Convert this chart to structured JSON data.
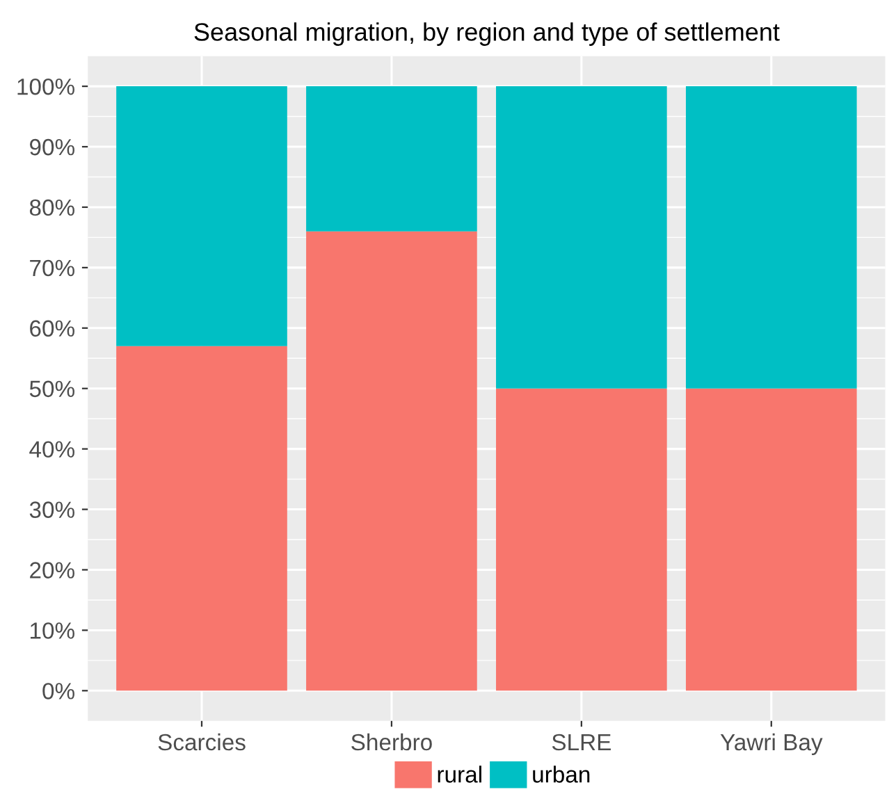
{
  "chart_data": {
    "type": "bar",
    "title": "Seasonal migration, by region and type of settlement",
    "categories": [
      "Scarcies",
      "Sherbro",
      "SLRE",
      "Yawri Bay"
    ],
    "stacked": true,
    "series": [
      {
        "name": "rural",
        "color": "#f8766d",
        "values": [
          57,
          76,
          50,
          50
        ]
      },
      {
        "name": "urban",
        "color": "#00bfc4",
        "values": [
          43,
          24,
          50,
          50
        ]
      }
    ],
    "ylim": [
      -5,
      105
    ],
    "yticks": [
      {
        "value": 0,
        "label": "0%"
      },
      {
        "value": 10,
        "label": "10%"
      },
      {
        "value": 20,
        "label": "20%"
      },
      {
        "value": 30,
        "label": "30%"
      },
      {
        "value": 40,
        "label": "40%"
      },
      {
        "value": 50,
        "label": "50%"
      },
      {
        "value": 60,
        "label": "60%"
      },
      {
        "value": 70,
        "label": "70%"
      },
      {
        "value": 80,
        "label": "80%"
      },
      {
        "value": 90,
        "label": "90%"
      },
      {
        "value": 100,
        "label": "100%"
      }
    ],
    "grid": true,
    "legend": "bottom"
  }
}
